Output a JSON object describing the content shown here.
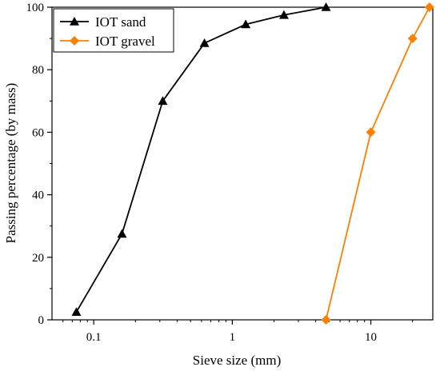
{
  "chart_data": {
    "type": "line",
    "title": "",
    "xlabel": "Sieve size (mm)",
    "ylabel": "Passing percentage (by mass)",
    "x_scale": "log",
    "xlim": [
      0.05,
      28
    ],
    "ylim": [
      0,
      100
    ],
    "x_ticks": [
      0.1,
      1,
      10
    ],
    "x_tick_labels": [
      "0.1",
      "1",
      "10"
    ],
    "y_ticks": [
      0,
      20,
      40,
      60,
      80,
      100
    ],
    "y_tick_labels": [
      "0",
      "20",
      "40",
      "60",
      "80",
      "100"
    ],
    "grid": false,
    "legend_position": "top-left",
    "series": [
      {
        "name": "IOT sand",
        "color": "#000000",
        "marker": "triangle",
        "x": [
          0.075,
          0.16,
          0.315,
          0.63,
          1.25,
          2.36,
          4.75
        ],
        "y": [
          2.5,
          27.5,
          70.0,
          88.5,
          94.5,
          97.5,
          100.0
        ]
      },
      {
        "name": "IOT gravel",
        "color": "#ff8000",
        "marker": "diamond",
        "x": [
          4.75,
          10,
          20,
          26.5
        ],
        "y": [
          0.0,
          60.0,
          90.0,
          100.0
        ]
      }
    ]
  }
}
